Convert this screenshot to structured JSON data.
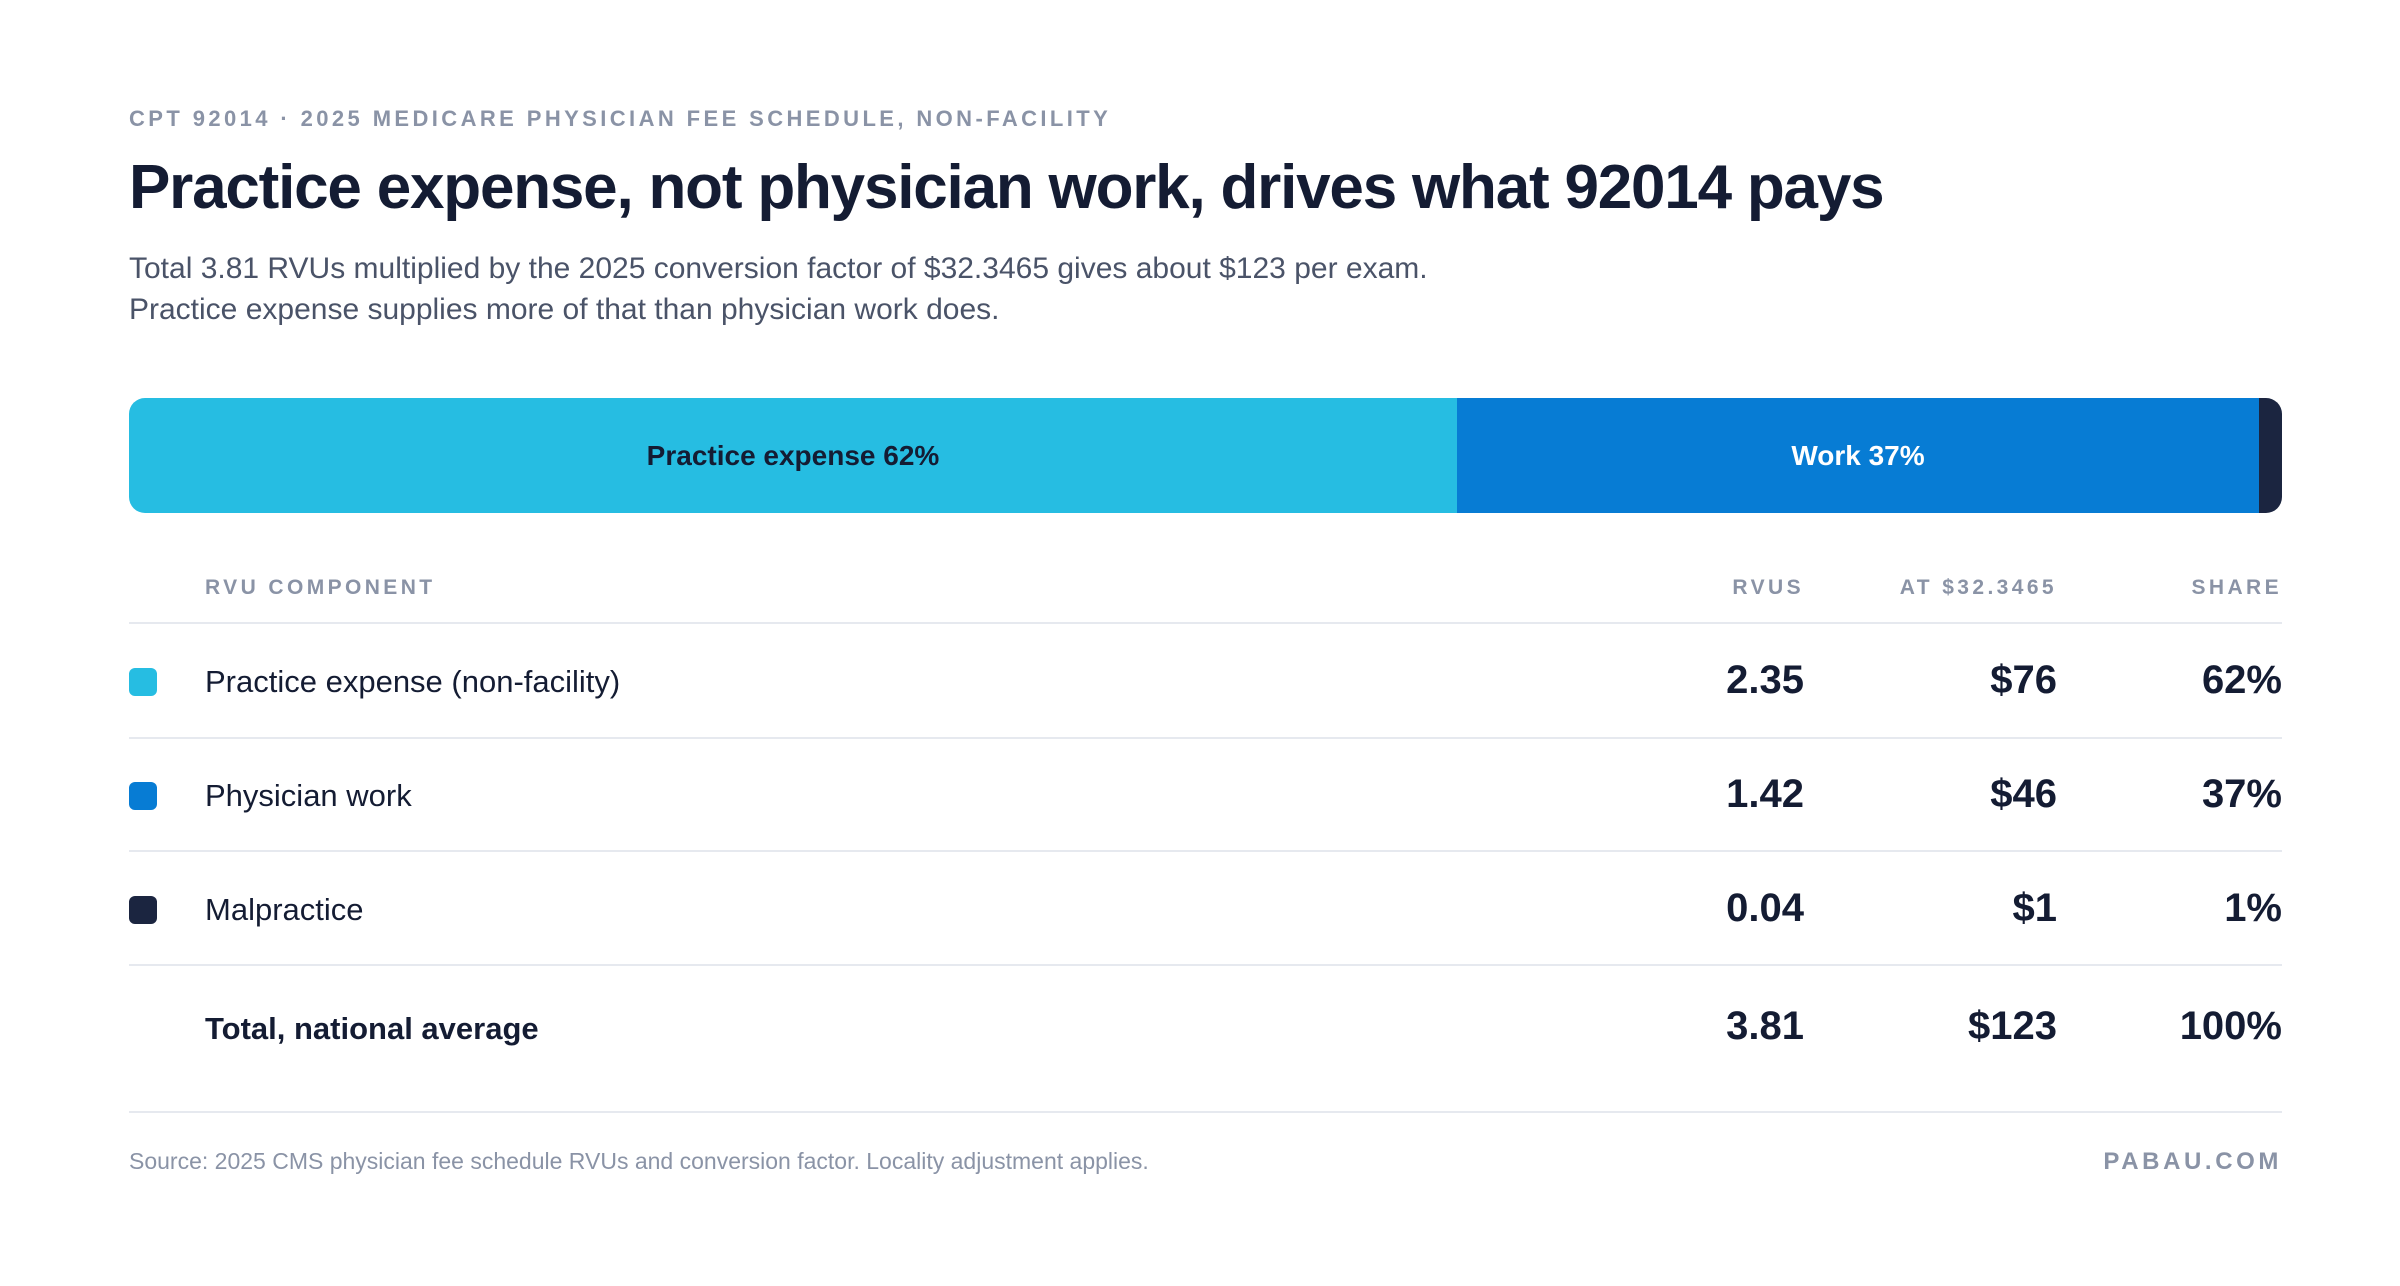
{
  "eyebrow": "CPT 92014 · 2025 MEDICARE PHYSICIAN FEE SCHEDULE, NON-FACILITY",
  "title": "Practice expense, not physician work, drives what 92014 pays",
  "subtitle": "Total 3.81 RVUs multiplied by the 2025 conversion factor of $32.3465 gives about $123 per exam. Practice expense supplies more of that than physician work does.",
  "chart_data": {
    "type": "bar",
    "orientation": "horizontal-stacked",
    "categories": [
      "Practice expense (non-facility)",
      "Physician work",
      "Malpractice"
    ],
    "values": [
      2.35,
      1.42,
      0.04
    ],
    "unit": "RVUs",
    "segment_labels": [
      "Practice expense 62%",
      "Work 37%",
      ""
    ],
    "colors": [
      "#26bde2",
      "#077cd4",
      "#1b2540"
    ],
    "label_colors": [
      "#141c33",
      "#ffffff",
      "#ffffff"
    ],
    "total": 3.81
  },
  "table": {
    "headers": {
      "component": "RVU COMPONENT",
      "rvus": "RVUS",
      "dollars": "AT $32.3465",
      "share": "SHARE"
    },
    "rows": [
      {
        "color": "#26bde2",
        "label": "Practice expense (non-facility)",
        "rvus": "2.35",
        "dollars": "$76",
        "share": "62%"
      },
      {
        "color": "#077cd4",
        "label": "Physician work",
        "rvus": "1.42",
        "dollars": "$46",
        "share": "37%"
      },
      {
        "color": "#1b2540",
        "label": "Malpractice",
        "rvus": "0.04",
        "dollars": "$1",
        "share": "1%"
      }
    ],
    "total": {
      "label": "Total, national average",
      "rvus": "3.81",
      "dollars": "$123",
      "share": "100%"
    }
  },
  "footer": {
    "source": "Source: 2025 CMS physician fee schedule RVUs and conversion factor. Locality adjustment applies.",
    "brand": "PABAU.COM"
  }
}
